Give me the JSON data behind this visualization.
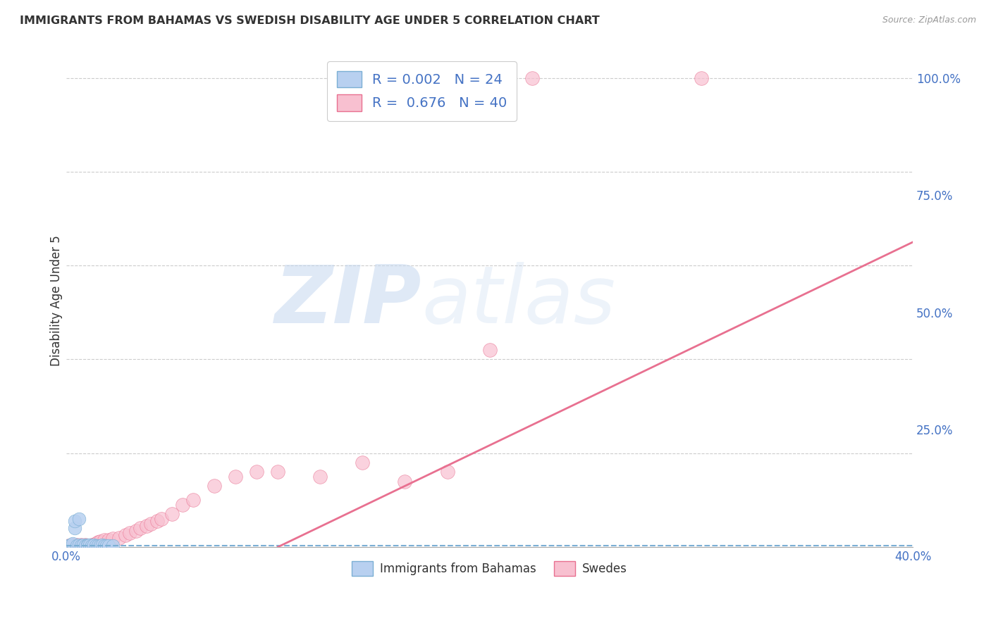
{
  "title": "IMMIGRANTS FROM BAHAMAS VS SWEDISH DISABILITY AGE UNDER 5 CORRELATION CHART",
  "source": "Source: ZipAtlas.com",
  "ylabel": "Disability Age Under 5",
  "xlabel_blue": "Immigrants from Bahamas",
  "xlabel_pink": "Swedes",
  "legend_blue_R": "0.002",
  "legend_blue_N": "24",
  "legend_pink_R": "0.676",
  "legend_pink_N": "40",
  "xlim": [
    0.0,
    0.4
  ],
  "ylim": [
    0.0,
    1.05
  ],
  "yticks": [
    0.25,
    0.5,
    0.75,
    1.0
  ],
  "ytick_labels": [
    "25.0%",
    "50.0%",
    "75.0%",
    "100.0%"
  ],
  "xticks": [
    0.0,
    0.4
  ],
  "xtick_labels": [
    "0.0%",
    "40.0%"
  ],
  "blue_scatter_x": [
    0.001,
    0.002,
    0.003,
    0.004,
    0.004,
    0.005,
    0.006,
    0.006,
    0.007,
    0.008,
    0.009,
    0.01,
    0.01,
    0.011,
    0.012,
    0.013,
    0.014,
    0.015,
    0.016,
    0.017,
    0.018,
    0.019,
    0.02,
    0.022
  ],
  "blue_scatter_y": [
    0.003,
    0.005,
    0.008,
    0.04,
    0.055,
    0.003,
    0.005,
    0.06,
    0.003,
    0.005,
    0.003,
    0.005,
    0.003,
    0.005,
    0.003,
    0.005,
    0.003,
    0.003,
    0.003,
    0.005,
    0.003,
    0.003,
    0.003,
    0.003
  ],
  "pink_scatter_x": [
    0.001,
    0.002,
    0.003,
    0.004,
    0.005,
    0.006,
    0.007,
    0.008,
    0.009,
    0.01,
    0.012,
    0.014,
    0.015,
    0.016,
    0.018,
    0.02,
    0.022,
    0.025,
    0.028,
    0.03,
    0.033,
    0.035,
    0.038,
    0.04,
    0.043,
    0.045,
    0.05,
    0.055,
    0.06,
    0.07,
    0.08,
    0.09,
    0.1,
    0.12,
    0.14,
    0.16,
    0.18,
    0.2,
    0.22,
    0.3
  ],
  "pink_scatter_y": [
    0.003,
    0.003,
    0.005,
    0.003,
    0.005,
    0.003,
    0.005,
    0.003,
    0.005,
    0.003,
    0.005,
    0.008,
    0.01,
    0.012,
    0.015,
    0.015,
    0.018,
    0.02,
    0.025,
    0.03,
    0.035,
    0.04,
    0.045,
    0.05,
    0.055,
    0.06,
    0.07,
    0.09,
    0.1,
    0.13,
    0.15,
    0.16,
    0.16,
    0.15,
    0.18,
    0.14,
    0.16,
    0.42,
    1.0,
    1.0
  ],
  "blue_line_x": [
    0.0,
    0.4
  ],
  "blue_line_y": [
    0.003,
    0.003
  ],
  "pink_line_x": [
    0.1,
    0.4
  ],
  "pink_line_y": [
    0.0,
    0.65
  ],
  "scatter_color_blue": "#b8d0f0",
  "scatter_edge_blue": "#7bafd4",
  "scatter_color_pink": "#f8c0d0",
  "scatter_edge_pink": "#e87090",
  "line_color_blue": "#7bafd4",
  "line_color_pink": "#e87090",
  "title_color": "#333333",
  "axis_label_color": "#333333",
  "tick_color_blue": "#4472c4",
  "grid_color": "#cccccc",
  "background_color": "#ffffff",
  "legend_text_color": "#4472c4",
  "watermark_zip_color": "#c5d8f0",
  "watermark_atlas_color": "#c5d8f0"
}
